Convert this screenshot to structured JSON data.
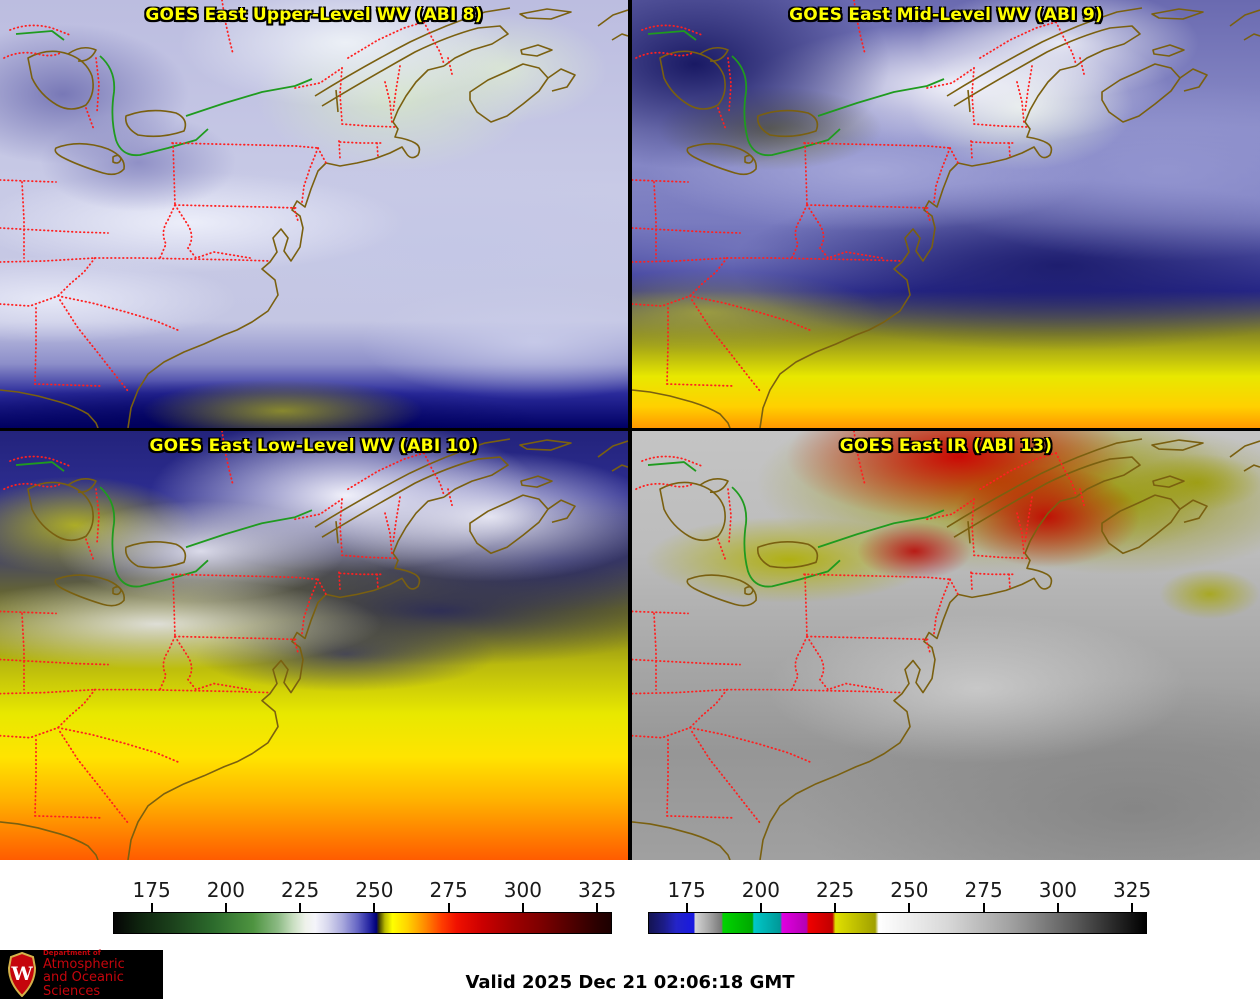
{
  "panels": [
    {
      "id": "abi8",
      "title": "GOES East Upper-Level WV (ABI 8)"
    },
    {
      "id": "abi9",
      "title": "GOES East Mid-Level WV (ABI 9)"
    },
    {
      "id": "abi10",
      "title": "GOES East Low-Level WV (ABI 10)"
    },
    {
      "id": "abi13",
      "title": "GOES East IR (ABI 13)"
    }
  ],
  "colorbars": [
    {
      "id": "wv-colorbar",
      "ticks": [
        "175",
        "200",
        "225",
        "250",
        "275",
        "300",
        "325"
      ],
      "axis_range": [
        162,
        330
      ],
      "stops": [
        [
          0,
          "#050505"
        ],
        [
          5,
          "#0e230e"
        ],
        [
          12,
          "#1c421c"
        ],
        [
          20,
          "#2c6b2c"
        ],
        [
          28,
          "#4e9440"
        ],
        [
          33,
          "#8cba84"
        ],
        [
          36,
          "#c8dec0"
        ],
        [
          38.5,
          "#eef2ea"
        ],
        [
          40.5,
          "#f4f4fa"
        ],
        [
          43,
          "#d8d8ee"
        ],
        [
          46,
          "#a8a8dc"
        ],
        [
          49,
          "#6666c4"
        ],
        [
          51.5,
          "#2222a0"
        ],
        [
          52.8,
          "#000078"
        ],
        [
          53.3,
          "#3a3a00"
        ],
        [
          54.5,
          "#b8b800"
        ],
        [
          56,
          "#ffff00"
        ],
        [
          59,
          "#ffd400"
        ],
        [
          62.5,
          "#ff8c00"
        ],
        [
          66,
          "#ff3c00"
        ],
        [
          69,
          "#f01000"
        ],
        [
          74,
          "#cc0000"
        ],
        [
          80,
          "#a00000"
        ],
        [
          86,
          "#7c0000"
        ],
        [
          92,
          "#500000"
        ],
        [
          97,
          "#2c0000"
        ],
        [
          100,
          "#1c0000"
        ]
      ]
    },
    {
      "id": "ir-colorbar",
      "ticks": [
        "175",
        "200",
        "225",
        "250",
        "275",
        "300",
        "325"
      ],
      "axis_range": [
        162,
        330
      ],
      "stops": [
        [
          0,
          "#141452"
        ],
        [
          3,
          "#1c1c88"
        ],
        [
          5.5,
          "#2424c8"
        ],
        [
          9,
          "#1818e0"
        ],
        [
          9.3,
          "#d4d4d4"
        ],
        [
          12,
          "#a8a8a8"
        ],
        [
          14.6,
          "#787878"
        ],
        [
          14.9,
          "#00d400"
        ],
        [
          20.8,
          "#00a800"
        ],
        [
          21.1,
          "#00c8c8"
        ],
        [
          26.4,
          "#009898"
        ],
        [
          26.8,
          "#e000e0"
        ],
        [
          31.7,
          "#b400b4"
        ],
        [
          32.1,
          "#f00000"
        ],
        [
          36.9,
          "#c00000"
        ],
        [
          37.5,
          "#e0e000"
        ],
        [
          45.5,
          "#a0a000"
        ],
        [
          46.2,
          "#ffffff"
        ],
        [
          60,
          "#d8d8d8"
        ],
        [
          73,
          "#a0a0a0"
        ],
        [
          86,
          "#585858"
        ],
        [
          100,
          "#000000"
        ]
      ]
    }
  ],
  "footer": {
    "valid_text": "Valid 2025 Dec 21 02:06:18 GMT"
  },
  "logo": {
    "department": "Department of",
    "name_line1": "Atmospheric",
    "name_line2": "and Oceanic Sciences",
    "monogram": "W"
  },
  "overlay_colors": {
    "state_borders": "#ff2020",
    "coastline": "#7a6010",
    "international_border": "#1f9b1f",
    "panel_title_text": "#ffff00",
    "uw_red": "#c5050c"
  }
}
